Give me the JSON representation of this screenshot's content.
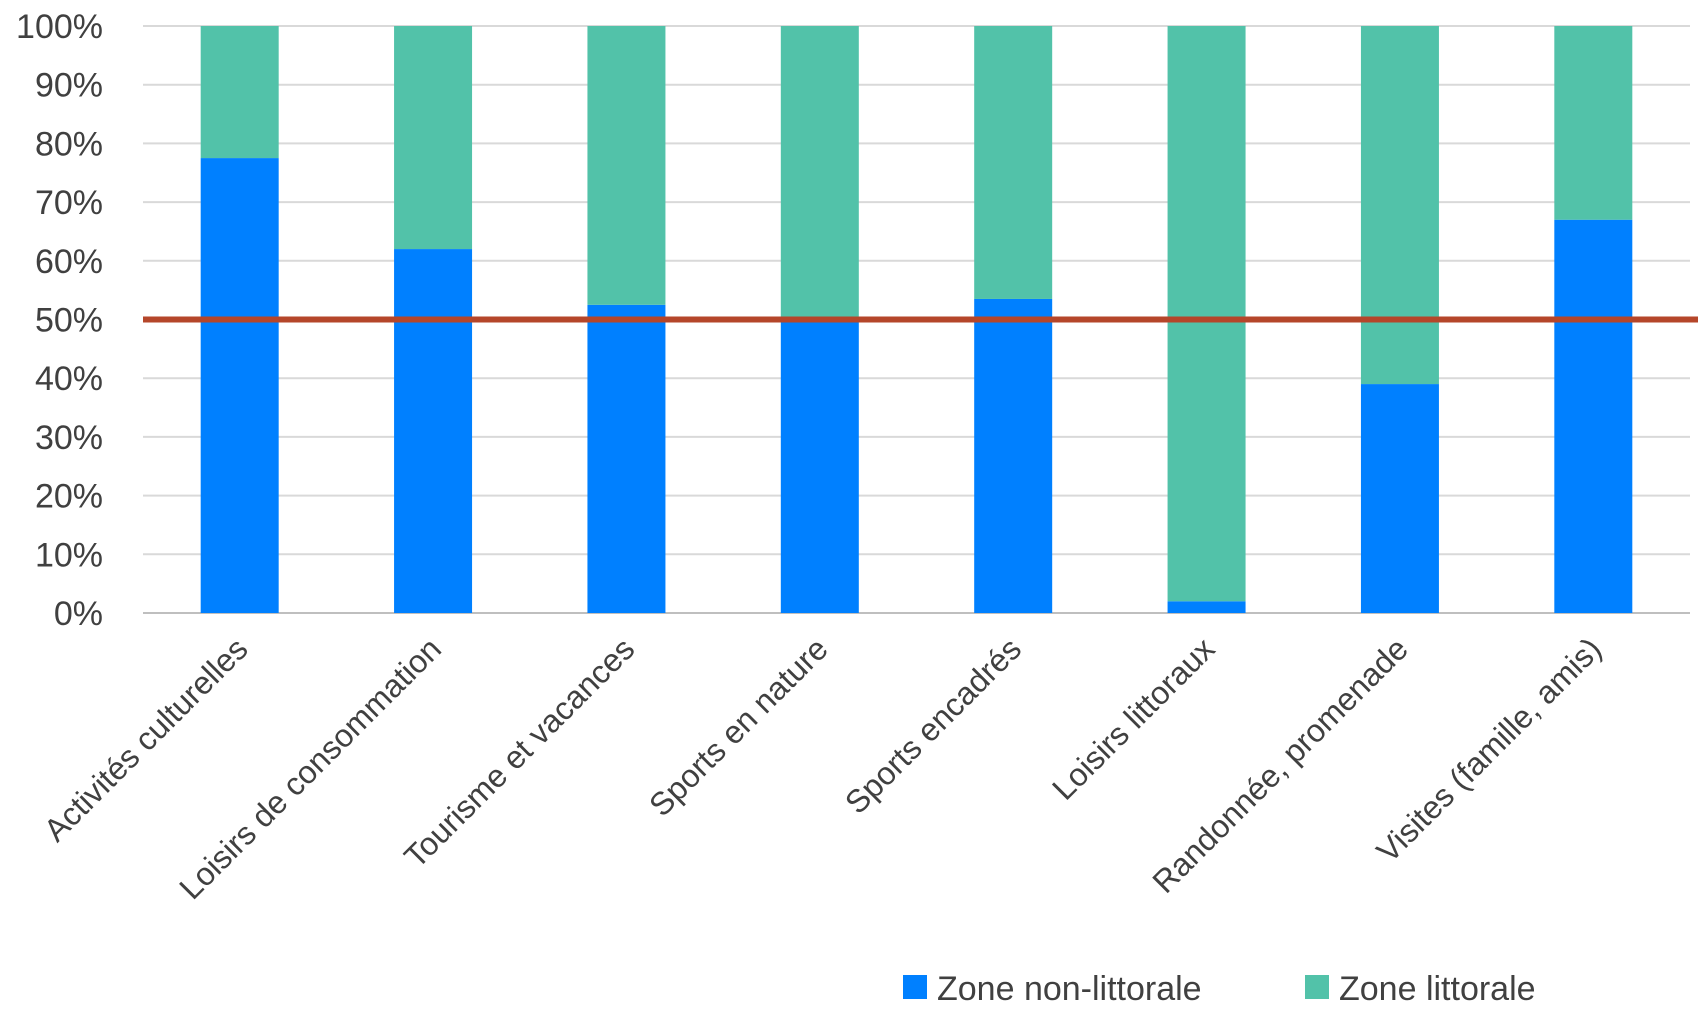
{
  "chart_data": {
    "type": "bar",
    "stacked": true,
    "title": "",
    "xlabel": "",
    "ylabel": "",
    "ylim": [
      0,
      100
    ],
    "y_ticks": [
      "0%",
      "10%",
      "20%",
      "30%",
      "40%",
      "50%",
      "60%",
      "70%",
      "80%",
      "90%",
      "100%"
    ],
    "categories": [
      "Activités culturelles",
      "Loisirs de consommation",
      "Tourisme et vacances",
      "Sports en nature",
      "Sports encadrés",
      "Loisirs littoraux",
      "Randonnée, promenade",
      "Visites (famille, amis)"
    ],
    "series": [
      {
        "name": "Zone non-littorale",
        "color": "#0080ff",
        "values": [
          77.5,
          62,
          52.5,
          49.5,
          53.5,
          2,
          39,
          67
        ]
      },
      {
        "name": "Zone littorale",
        "color": "#52c2a9",
        "values": [
          22.5,
          38,
          47.5,
          50.5,
          46.5,
          98,
          61,
          33
        ]
      }
    ],
    "reference_line": {
      "value": 50,
      "color": "#b5462a"
    },
    "grid": true,
    "legend_position": "bottom-right"
  }
}
